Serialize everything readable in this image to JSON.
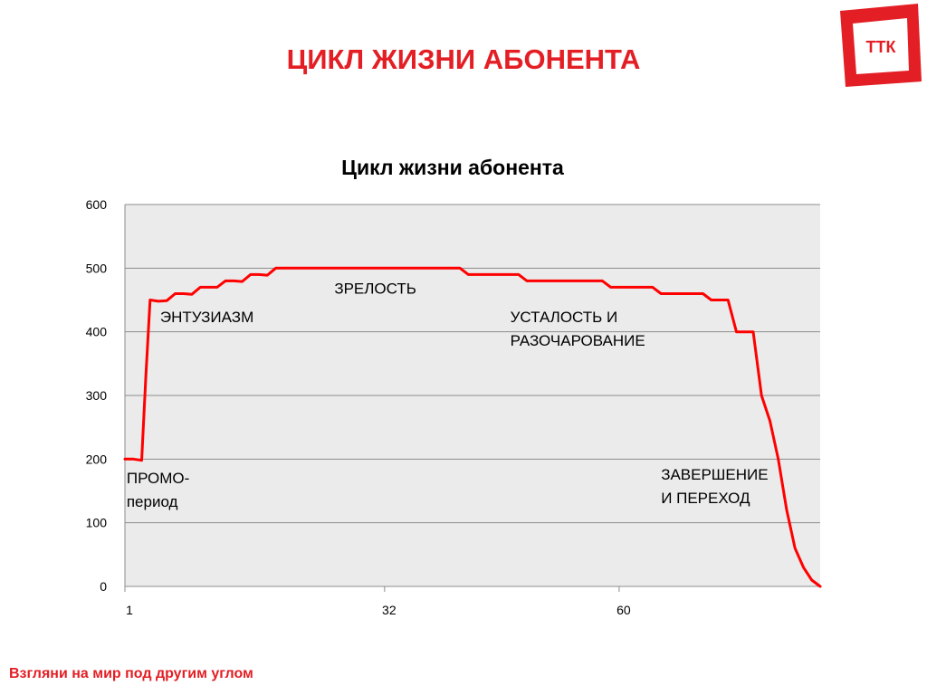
{
  "slide": {
    "title": "ЦИКЛ ЖИЗНИ АБОНЕНТА",
    "logo_text": "ТТК",
    "slogan": "Взгляни на мир под другим углом",
    "brand_color": "#e31e24"
  },
  "chart_data": {
    "type": "line",
    "title": "Цикл жизни абонента",
    "ylim": [
      0,
      600
    ],
    "yticks": [
      0,
      100,
      200,
      300,
      400,
      500,
      600
    ],
    "xlim": [
      1,
      84
    ],
    "xticks": [
      1,
      32,
      60
    ],
    "grid": true,
    "plot_background": "#ebebeb",
    "series": [
      {
        "color": "#ff0000",
        "x": [
          1,
          2,
          3,
          3.5,
          4,
          5,
          6,
          7,
          8,
          9,
          10,
          11,
          12,
          13,
          14,
          15,
          16,
          17,
          18,
          19,
          20,
          21,
          22,
          23,
          24,
          25,
          26,
          27,
          28,
          29,
          30,
          31,
          32,
          33,
          34,
          35,
          36,
          37,
          38,
          39,
          40,
          41,
          42,
          43,
          44,
          45,
          46,
          47,
          48,
          49,
          50,
          51,
          52,
          53,
          54,
          55,
          56,
          57,
          58,
          59,
          60,
          61,
          62,
          63,
          64,
          65,
          66,
          67,
          68,
          69,
          70,
          71,
          72,
          73,
          74,
          75,
          76,
          77,
          78,
          79,
          80,
          81,
          82,
          83,
          84
        ],
        "values": [
          200,
          200,
          198,
          330,
          450,
          448,
          449,
          460,
          460,
          459,
          470,
          470,
          470,
          480,
          480,
          479,
          490,
          490,
          489,
          500,
          500,
          500,
          500,
          500,
          500,
          500,
          500,
          500,
          500,
          500,
          500,
          500,
          500,
          500,
          500,
          500,
          500,
          500,
          500,
          500,
          500,
          500,
          490,
          490,
          490,
          490,
          490,
          490,
          490,
          480,
          480,
          480,
          480,
          480,
          480,
          480,
          480,
          480,
          480,
          470,
          470,
          470,
          470,
          470,
          470,
          460,
          460,
          460,
          460,
          460,
          460,
          450,
          450,
          450,
          400,
          400,
          400,
          300,
          260,
          200,
          120,
          60,
          30,
          10,
          0
        ]
      }
    ],
    "annotations": [
      {
        "lines": [
          "ПРОМО-",
          "период"
        ],
        "x": 1.2,
        "y": 162
      },
      {
        "lines": [
          "ЭНТУЗИАЗМ"
        ],
        "x": 5.2,
        "y": 415
      },
      {
        "lines": [
          "ЗРЕЛОСТЬ"
        ],
        "x": 26,
        "y": 460
      },
      {
        "lines": [
          "УСТАЛОСТЬ И",
          "РАЗОЧАРОВАНИЕ"
        ],
        "x": 47,
        "y": 415
      },
      {
        "lines": [
          "ЗАВЕРШЕНИЕ",
          "И ПЕРЕХОД"
        ],
        "x": 65,
        "y": 168
      }
    ]
  }
}
